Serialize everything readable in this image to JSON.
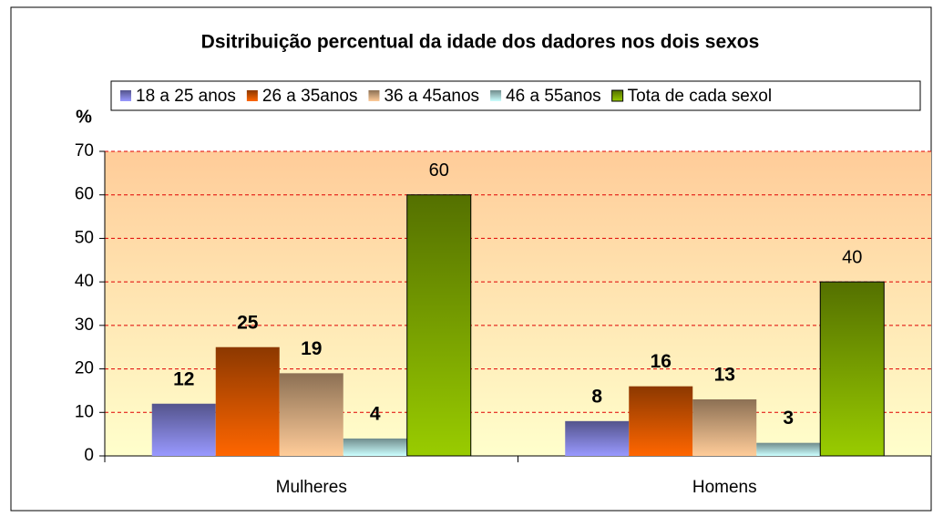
{
  "chart_data": {
    "type": "bar",
    "title": "Dsitribuição percentual da idade dos dadores nos dois sexos",
    "y_label": "%",
    "categories": [
      "Mulheres",
      "Homens"
    ],
    "series": [
      {
        "name": "18 a 25 anos",
        "color": "#9999ff",
        "values": [
          12,
          8
        ]
      },
      {
        "name": "26 a 35anos",
        "color": "#ff6600",
        "values": [
          25,
          16
        ]
      },
      {
        "name": "36 a 45anos",
        "color": "#ffcc99",
        "values": [
          19,
          13
        ]
      },
      {
        "name": "46 a 55anos",
        "color": "#ccffff",
        "values": [
          4,
          3
        ]
      },
      {
        "name": "Tota de cada sexol",
        "color": "#99cc00",
        "values": [
          60,
          40
        ]
      }
    ],
    "ylim": [
      0,
      70
    ],
    "yticks": [
      0,
      10,
      20,
      30,
      40,
      50,
      60,
      70
    ],
    "grid": true,
    "legend": "top"
  }
}
